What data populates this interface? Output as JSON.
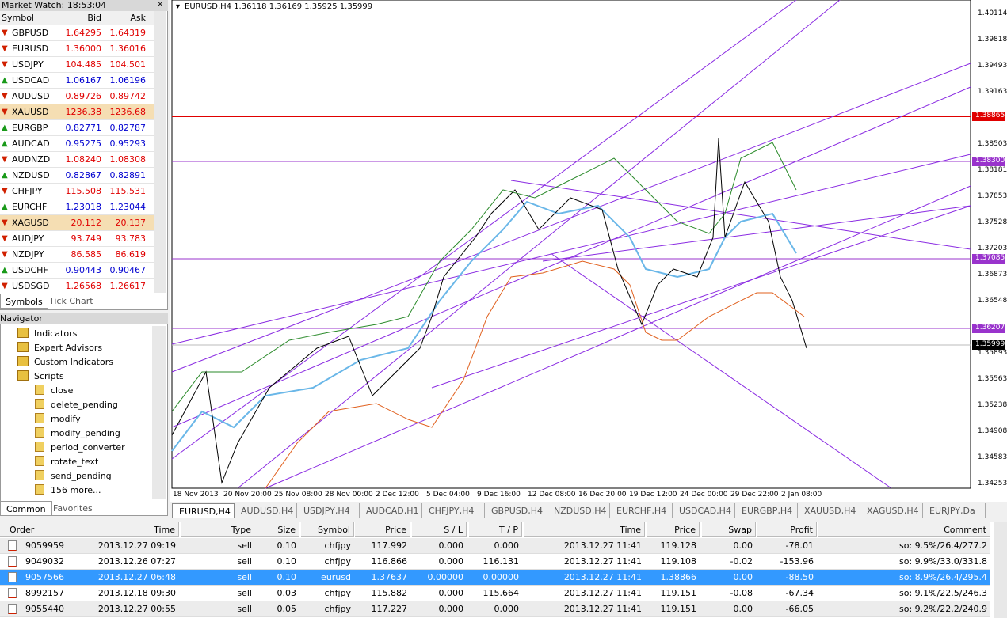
{
  "market_watch": {
    "title": "Market Watch: 18:53:04",
    "columns": [
      "Symbol",
      "Bid",
      "Ask"
    ],
    "rows": [
      {
        "symbol": "GBPUSD",
        "bid": "1.64295",
        "ask": "1.64319",
        "color": "#e00000"
      },
      {
        "symbol": "EURUSD",
        "bid": "1.36000",
        "ask": "1.36016",
        "color": "#e00000"
      },
      {
        "symbol": "USDJPY",
        "bid": "104.485",
        "ask": "104.501",
        "color": "#e00000"
      },
      {
        "symbol": "USDCAD",
        "bid": "1.06167",
        "ask": "1.06196",
        "color": "#0000d0"
      },
      {
        "symbol": "AUDUSD",
        "bid": "0.89726",
        "ask": "0.89742",
        "color": "#e00000"
      },
      {
        "symbol": "XAUUSD",
        "bid": "1236.38",
        "ask": "1236.68",
        "color": "#e00000",
        "highlight": true
      },
      {
        "symbol": "EURGBP",
        "bid": "0.82771",
        "ask": "0.82787",
        "color": "#0000d0"
      },
      {
        "symbol": "AUDCAD",
        "bid": "0.95275",
        "ask": "0.95293",
        "color": "#0000d0"
      },
      {
        "symbol": "AUDNZD",
        "bid": "1.08240",
        "ask": "1.08308",
        "color": "#e00000"
      },
      {
        "symbol": "NZDUSD",
        "bid": "0.82867",
        "ask": "0.82891",
        "color": "#0000d0"
      },
      {
        "symbol": "CHFJPY",
        "bid": "115.508",
        "ask": "115.531",
        "color": "#e00000"
      },
      {
        "symbol": "EURCHF",
        "bid": "1.23018",
        "ask": "1.23044",
        "color": "#0000d0"
      },
      {
        "symbol": "XAGUSD",
        "bid": "20.112",
        "ask": "20.137",
        "color": "#e00000",
        "highlight": true
      },
      {
        "symbol": "AUDJPY",
        "bid": "93.749",
        "ask": "93.783",
        "color": "#e00000"
      },
      {
        "symbol": "NZDJPY",
        "bid": "86.585",
        "ask": "86.619",
        "color": "#e00000"
      },
      {
        "symbol": "USDCHF",
        "bid": "0.90443",
        "ask": "0.90467",
        "color": "#0000d0"
      },
      {
        "symbol": "USDSGD",
        "bid": "1.26568",
        "ask": "1.26617",
        "color": "#e00000"
      }
    ],
    "tabs": [
      "Symbols",
      "Tick Chart"
    ]
  },
  "navigator": {
    "title": "Navigator",
    "items": [
      "Indicators",
      "Expert Advisors",
      "Custom Indicators",
      "Scripts"
    ],
    "scripts": [
      "close",
      "delete_pending",
      "modify",
      "modify_pending",
      "period_converter",
      "rotate_text",
      "send_pending",
      "156 more..."
    ],
    "tabs": [
      "Common",
      "Favorites"
    ]
  },
  "chart": {
    "header": "EURUSD,H4  1.36118 1.36169 1.35925 1.35999",
    "price_labels": [
      "1.40114",
      "1.39818",
      "1.39493",
      "1.39163",
      "1.38503",
      "1.38181",
      "1.37853",
      "1.37528",
      "1.37203",
      "1.36873",
      "1.36548",
      "1.35893",
      "1.35563",
      "1.35238",
      "1.34908",
      "1.34583",
      "1.34253"
    ],
    "marked_prices": [
      {
        "label": "1.38865",
        "color": "#e00000"
      },
      {
        "label": "1.38300",
        "color": "#9933cc"
      },
      {
        "label": "1.37085",
        "color": "#9933cc"
      },
      {
        "label": "1.36207",
        "color": "#9933cc"
      },
      {
        "label": "1.35999",
        "color": "#000000"
      }
    ],
    "time_labels": [
      "18 Nov 2013",
      "20 Nov 20:00",
      "25 Nov 08:00",
      "28 Nov 00:00",
      "2 Dec 12:00",
      "5 Dec 04:00",
      "9 Dec 16:00",
      "12 Dec 08:00",
      "16 Dec 20:00",
      "19 Dec 12:00",
      "24 Dec 00:00",
      "29 Dec 22:00",
      "2 Jan 08:00"
    ],
    "tabs": [
      "EURUSD,H4",
      "AUDUSD,H4",
      "USDJPY,H4",
      "AUDCAD,H1",
      "CHFJPY,H4",
      "GBPUSD,H4",
      "NZDUSD,H4",
      "EURCHF,H4",
      "USDCAD,H4",
      "EURGBP,H4",
      "XAUUSD,H4",
      "XAGUSD,H4",
      "EURJPY,Da"
    ]
  },
  "terminal": {
    "columns": [
      "Order",
      "Time",
      "Type",
      "Size",
      "Symbol",
      "Price",
      "S / L",
      "T / P",
      "Time",
      "Price",
      "Swap",
      "Profit",
      "Comment"
    ],
    "selected_row": 2,
    "rows": [
      [
        "9059959",
        "2013.12.27 09:19",
        "sell",
        "0.10",
        "chfjpy",
        "117.992",
        "0.000",
        "0.000",
        "2013.12.27 11:41",
        "119.128",
        "0.00",
        "-78.01",
        "so: 9.5%/26.4/277.2"
      ],
      [
        "9049032",
        "2013.12.26 07:27",
        "sell",
        "0.10",
        "chfjpy",
        "116.866",
        "0.000",
        "116.131",
        "2013.12.27 11:41",
        "119.108",
        "-0.02",
        "-153.96",
        "so: 9.9%/33.0/331.8"
      ],
      [
        "9057566",
        "2013.12.27 06:48",
        "sell",
        "0.10",
        "eurusd",
        "1.37637",
        "0.00000",
        "0.00000",
        "2013.12.27 11:41",
        "1.38866",
        "0.00",
        "-88.50",
        "so: 8.9%/26.4/295.4"
      ],
      [
        "8992157",
        "2013.12.18 09:30",
        "sell",
        "0.03",
        "chfjpy",
        "115.882",
        "0.000",
        "115.664",
        "2013.12.27 11:41",
        "119.151",
        "-0.08",
        "-67.34",
        "so: 9.1%/22.5/246.3"
      ],
      [
        "9055440",
        "2013.12.27 00:55",
        "sell",
        "0.05",
        "chfjpy",
        "117.227",
        "0.000",
        "0.000",
        "2013.12.27 11:41",
        "119.151",
        "0.00",
        "-66.05",
        "so: 9.2%/22.2/240.9"
      ]
    ]
  }
}
